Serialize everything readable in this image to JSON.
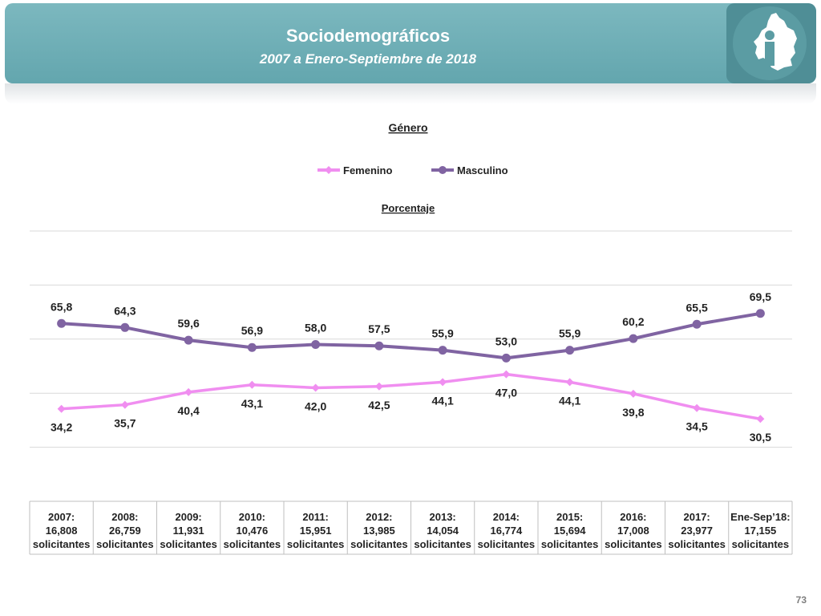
{
  "header": {
    "title": "Sociodemográficos",
    "subtitle": "2007 a Enero-Septiembre de 2018",
    "logo_icon": "cdmx-map-icon"
  },
  "page_number": "73",
  "colors": {
    "header_bg": "#6aadb5",
    "femenino": "#f08ef0",
    "masculino": "#8064a2",
    "grid": "#d9d9d9"
  },
  "chart_data": {
    "type": "line",
    "title": "Género",
    "subtitle": "Porcentaje",
    "legend_position": "top",
    "grid": true,
    "ylim": [
      0,
      100
    ],
    "categories": [
      [
        "2007:",
        "16,808",
        "solicitantes"
      ],
      [
        "2008:",
        "26,759",
        "solicitantes"
      ],
      [
        "2009:",
        "11,931",
        "solicitantes"
      ],
      [
        "2010:",
        "10,476",
        "solicitantes"
      ],
      [
        "2011:",
        "15,951",
        "solicitantes"
      ],
      [
        "2012:",
        "13,985",
        "solicitantes"
      ],
      [
        "2013:",
        "14,054",
        "solicitantes"
      ],
      [
        "2014:",
        "16,774",
        "solicitantes"
      ],
      [
        "2015:",
        "15,694",
        "solicitantes"
      ],
      [
        "2016:",
        "17,008",
        "solicitantes"
      ],
      [
        "2017:",
        "23,977",
        "solicitantes"
      ],
      [
        "Ene-Sep’18:",
        "17,155",
        "solicitantes"
      ]
    ],
    "series": [
      {
        "name": "Femenino",
        "color": "#f08ef0",
        "marker": "diamond",
        "values": [
          34.2,
          35.7,
          40.4,
          43.1,
          42.0,
          42.5,
          44.1,
          47.0,
          44.1,
          39.8,
          34.5,
          30.5
        ],
        "labels": [
          "34,2",
          "35,7",
          "40,4",
          "43,1",
          "42,0",
          "42,5",
          "44,1",
          "47,0",
          "44,1",
          "39,8",
          "34,5",
          "30,5"
        ]
      },
      {
        "name": "Masculino",
        "color": "#8064a2",
        "marker": "circle",
        "values": [
          65.8,
          64.3,
          59.6,
          56.9,
          58.0,
          57.5,
          55.9,
          53.0,
          55.9,
          60.2,
          65.5,
          69.5
        ],
        "labels": [
          "65,8",
          "64,3",
          "59,6",
          "56,9",
          "58,0",
          "57,5",
          "55,9",
          "53,0",
          "55,9",
          "60,2",
          "65,5",
          "69,5"
        ]
      }
    ]
  }
}
